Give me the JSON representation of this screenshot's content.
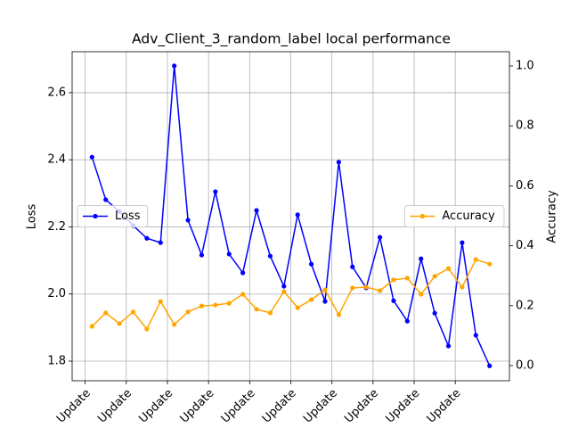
{
  "chart_data": {
    "type": "line",
    "title": "Adv_Client_3_random_label local performance",
    "y_label": "Loss",
    "y2_label": "Accuracy",
    "x": [
      0,
      1,
      2,
      3,
      4,
      5,
      6,
      7,
      8,
      9,
      10,
      11,
      12,
      13,
      14,
      15,
      16,
      17,
      18,
      19,
      20,
      21,
      22,
      23,
      24,
      25,
      26,
      27,
      28,
      29
    ],
    "xlim": [
      -1.45,
      30.45
    ],
    "xticks": [
      {
        "value": -0.5,
        "label": "Update"
      },
      {
        "value": 2.5,
        "label": "Update"
      },
      {
        "value": 5.5,
        "label": "Update"
      },
      {
        "value": 8.5,
        "label": "Update"
      },
      {
        "value": 11.5,
        "label": "Update"
      },
      {
        "value": 14.5,
        "label": "Update"
      },
      {
        "value": 17.5,
        "label": "Update"
      },
      {
        "value": 20.5,
        "label": "Update"
      },
      {
        "value": 23.5,
        "label": "Update"
      },
      {
        "value": 26.5,
        "label": "Update"
      }
    ],
    "ylim": [
      1.7415,
      2.722
    ],
    "yticks": [
      {
        "value": 1.8,
        "label": "1.8"
      },
      {
        "value": 2.0,
        "label": "2.0"
      },
      {
        "value": 2.2,
        "label": "2.2"
      },
      {
        "value": 2.4,
        "label": "2.4"
      },
      {
        "value": 2.6,
        "label": "2.6"
      }
    ],
    "y2lim": [
      -0.0506,
      1.0476
    ],
    "y2ticks": [
      {
        "value": 0,
        "label": "0.0"
      },
      {
        "value": 0.2,
        "label": "0.2"
      },
      {
        "value": 0.4,
        "label": "0.4"
      },
      {
        "value": 0.6,
        "label": "0.6"
      },
      {
        "value": 0.8,
        "label": "0.8"
      },
      {
        "value": 1.0,
        "label": "1.0"
      }
    ],
    "grid": true,
    "series": [
      {
        "name": "Loss",
        "color": "#0000ff",
        "legend_loc": "center left",
        "values": [
          2.408,
          2.281,
          2.246,
          2.204,
          2.166,
          2.153,
          2.68,
          2.22,
          2.116,
          2.305,
          2.119,
          2.063,
          2.249,
          2.113,
          2.023,
          2.236,
          2.089,
          1.978,
          2.393,
          2.081,
          2.018,
          2.169,
          1.98,
          1.919,
          2.105,
          1.943,
          1.845,
          2.153,
          1.877,
          1.786
        ]
      },
      {
        "name": "Accuracy",
        "color": "#ffa500",
        "axis": "y2",
        "legend_loc": "center right",
        "values": [
          0.131,
          0.176,
          0.14,
          0.179,
          0.122,
          0.214,
          0.137,
          0.179,
          0.199,
          0.202,
          0.208,
          0.238,
          0.188,
          0.176,
          0.247,
          0.193,
          0.22,
          0.253,
          0.17,
          0.259,
          0.262,
          0.25,
          0.286,
          0.292,
          0.238,
          0.298,
          0.324,
          0.262,
          0.354,
          0.339
        ]
      }
    ]
  }
}
